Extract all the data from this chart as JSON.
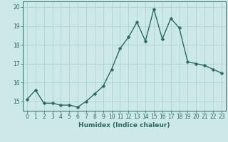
{
  "x": [
    0,
    1,
    2,
    3,
    4,
    5,
    6,
    7,
    8,
    9,
    10,
    11,
    12,
    13,
    14,
    15,
    16,
    17,
    18,
    19,
    20,
    21,
    22,
    23
  ],
  "y": [
    15.1,
    15.6,
    14.9,
    14.9,
    14.8,
    14.8,
    14.7,
    15.0,
    15.4,
    15.8,
    16.7,
    17.8,
    18.4,
    19.2,
    18.2,
    19.9,
    18.3,
    19.4,
    18.9,
    17.1,
    17.0,
    16.9,
    16.7,
    16.5
  ],
  "line_color": "#2d6b5e",
  "bg_color": "#cce8e8",
  "grid_color": "#aacfcf",
  "xlabel": "Humidex (Indice chaleur)",
  "ylim": [
    14.5,
    20.3
  ],
  "xlim": [
    -0.5,
    23.5
  ],
  "yticks": [
    15,
    16,
    17,
    18,
    19,
    20
  ],
  "xticks": [
    0,
    1,
    2,
    3,
    4,
    5,
    6,
    7,
    8,
    9,
    10,
    11,
    12,
    13,
    14,
    15,
    16,
    17,
    18,
    19,
    20,
    21,
    22,
    23
  ],
  "tick_color": "#2d6b5e",
  "label_fontsize": 6.5,
  "tick_fontsize": 5.5,
  "marker_size": 2.5,
  "line_width": 1.0
}
